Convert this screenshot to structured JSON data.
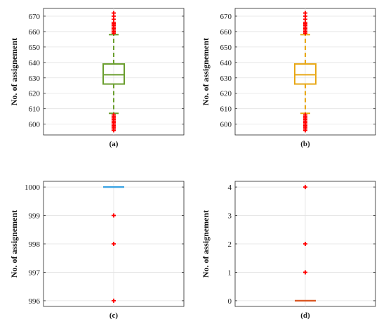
{
  "chart_data": [
    {
      "type": "box",
      "caption": "(a)",
      "ylabel": "No. of assignement",
      "ylim": [
        593,
        675
      ],
      "yticks": [
        600,
        610,
        620,
        630,
        640,
        650,
        660,
        670
      ],
      "grid": true,
      "color": "#6a9e2e",
      "box": {
        "whisker_low": 607,
        "q1": 626,
        "median": 632,
        "q3": 639,
        "whisker_high": 658
      },
      "outliers": [
        596,
        597,
        598,
        599,
        600,
        601,
        602,
        603,
        604,
        605,
        606,
        659,
        660,
        661,
        662,
        663,
        664,
        665,
        666,
        668,
        670,
        672
      ]
    },
    {
      "type": "box",
      "caption": "(b)",
      "ylabel": "No. of assignement",
      "ylim": [
        593,
        675
      ],
      "yticks": [
        600,
        610,
        620,
        630,
        640,
        650,
        660,
        670
      ],
      "grid": true,
      "color": "#e8a817",
      "box": {
        "whisker_low": 607,
        "q1": 626,
        "median": 632,
        "q3": 639,
        "whisker_high": 658
      },
      "outliers": [
        596,
        597,
        598,
        599,
        600,
        601,
        602,
        603,
        604,
        605,
        606,
        659,
        660,
        661,
        662,
        663,
        664,
        665,
        666,
        668,
        670,
        672
      ]
    },
    {
      "type": "box",
      "caption": "(c)",
      "ylabel": "No. of assignement",
      "ylim": [
        995.8,
        1000.2
      ],
      "yticks": [
        996,
        997,
        998,
        999,
        1000
      ],
      "grid": true,
      "color": "#3aa3e3",
      "box": {
        "whisker_low": 1000,
        "q1": 1000,
        "median": 1000,
        "q3": 1000,
        "whisker_high": 1000
      },
      "outliers": [
        999,
        998,
        996
      ]
    },
    {
      "type": "box",
      "caption": "(d)",
      "ylabel": "No. of assignement",
      "ylim": [
        -0.2,
        4.2
      ],
      "yticks": [
        0,
        1,
        2,
        3,
        4
      ],
      "grid": true,
      "color": "#d9531e",
      "box": {
        "whisker_low": 0,
        "q1": 0,
        "median": 0,
        "q3": 0,
        "whisker_high": 0
      },
      "outliers": [
        4,
        2,
        1
      ]
    }
  ],
  "outlier_color": "#ff0000"
}
